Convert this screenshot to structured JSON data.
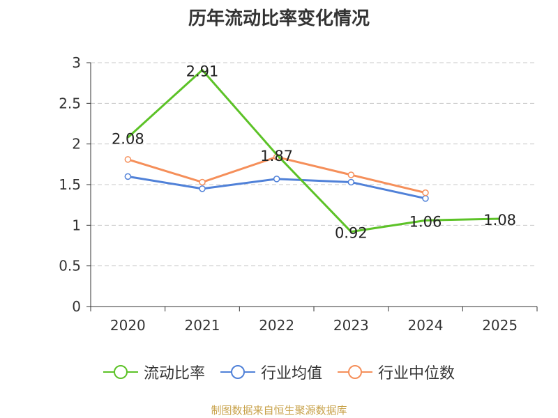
{
  "chart_data": {
    "type": "line",
    "title": "历年流动比率变化情况",
    "categories": [
      "2020",
      "2021",
      "2022",
      "2023",
      "2024",
      "2025"
    ],
    "ylim": [
      0,
      3
    ],
    "yticks": [
      "0",
      "0.5",
      "1",
      "1.5",
      "2",
      "2.5",
      "3"
    ],
    "grid": true,
    "legend_position": "bottom",
    "series": [
      {
        "name": "流动比率",
        "color": "#5cc227",
        "values": [
          2.08,
          2.91,
          1.87,
          0.92,
          1.06,
          1.08
        ],
        "labels": [
          "2.08",
          "2.91",
          "1.87",
          "0.92",
          "1.06",
          "1.08"
        ]
      },
      {
        "name": "行业均值",
        "color": "#5081d8",
        "values": [
          1.6,
          1.45,
          1.57,
          1.53,
          1.33,
          null
        ]
      },
      {
        "name": "行业中位数",
        "color": "#f58f5a",
        "values": [
          1.81,
          1.53,
          1.84,
          1.62,
          1.4,
          null
        ]
      }
    ]
  },
  "source_note": "制图数据来自恒生聚源数据库"
}
